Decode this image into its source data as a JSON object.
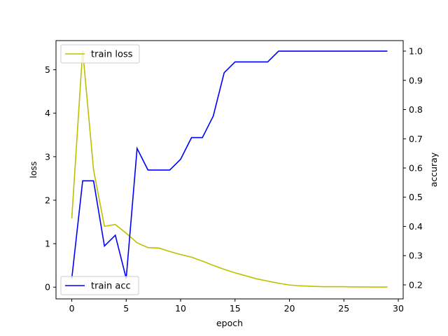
{
  "chart_data": {
    "type": "line",
    "title": "",
    "xlabel": "epoch",
    "ylabel_left": "loss",
    "ylabel_right": "accuray",
    "xlim": [
      -1.45,
      30.45
    ],
    "ylim_left": [
      -0.27,
      5.67
    ],
    "ylim_right": [
      0.152,
      1.036
    ],
    "xticks": [
      0,
      5,
      10,
      15,
      20,
      25,
      30
    ],
    "yticks_left": [
      0,
      1,
      2,
      3,
      4,
      5
    ],
    "yticks_right": [
      0.2,
      0.3,
      0.4,
      0.5,
      0.6,
      0.7,
      0.8,
      0.9,
      1.0
    ],
    "grid": false,
    "x": [
      0,
      1,
      2,
      3,
      4,
      5,
      6,
      7,
      8,
      9,
      10,
      11,
      12,
      13,
      14,
      15,
      16,
      17,
      18,
      19,
      20,
      21,
      22,
      23,
      24,
      25,
      26,
      27,
      28,
      29
    ],
    "series": [
      {
        "name": "train loss",
        "axis": "left",
        "color": "#bfbf00",
        "values": [
          1.58,
          5.45,
          2.7,
          1.4,
          1.44,
          1.24,
          1.02,
          0.91,
          0.9,
          0.82,
          0.75,
          0.69,
          0.6,
          0.5,
          0.41,
          0.33,
          0.26,
          0.19,
          0.14,
          0.09,
          0.05,
          0.03,
          0.02,
          0.01,
          0.01,
          0.01,
          0.005,
          0.005,
          0.003,
          0.003
        ]
      },
      {
        "name": "train acc",
        "axis": "right",
        "color": "#0000ff",
        "values": [
          0.222,
          0.556,
          0.556,
          0.333,
          0.37,
          0.222,
          0.667,
          0.593,
          0.593,
          0.593,
          0.63,
          0.704,
          0.704,
          0.778,
          0.926,
          0.963,
          0.963,
          0.963,
          0.963,
          1.0,
          1.0,
          1.0,
          1.0,
          1.0,
          1.0,
          1.0,
          1.0,
          1.0,
          1.0,
          1.0
        ]
      }
    ],
    "legends": [
      {
        "series": "train loss",
        "placement": "upper left"
      },
      {
        "series": "train acc",
        "placement": "lower left"
      }
    ]
  }
}
